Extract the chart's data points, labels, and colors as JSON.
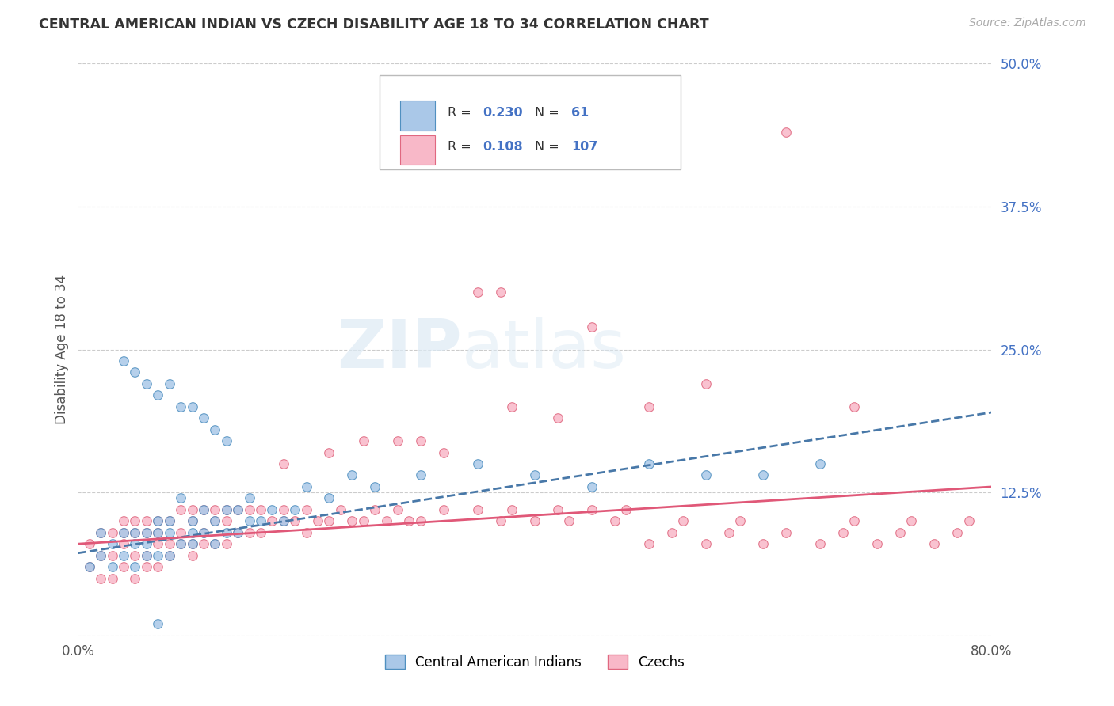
{
  "title": "CENTRAL AMERICAN INDIAN VS CZECH DISABILITY AGE 18 TO 34 CORRELATION CHART",
  "source": "Source: ZipAtlas.com",
  "ylabel": "Disability Age 18 to 34",
  "xlim": [
    0.0,
    0.8
  ],
  "ylim": [
    0.0,
    0.5
  ],
  "xtick_vals": [
    0.0,
    0.1,
    0.2,
    0.3,
    0.4,
    0.5,
    0.6,
    0.7,
    0.8
  ],
  "ytick_vals": [
    0.0,
    0.125,
    0.25,
    0.375,
    0.5
  ],
  "ytick_labels": [
    "",
    "12.5%",
    "25.0%",
    "37.5%",
    "50.0%"
  ],
  "blue_R": 0.23,
  "blue_N": 61,
  "pink_R": 0.108,
  "pink_N": 107,
  "blue_line_color": "#4878a8",
  "pink_line_color": "#e05878",
  "blue_fill_color": "#aac8e8",
  "pink_fill_color": "#f8b8c8",
  "blue_edge_color": "#5090c0",
  "pink_edge_color": "#e06880",
  "legend_label_blue": "Central American Indians",
  "legend_label_pink": "Czechs",
  "blue_trend_start": 0.072,
  "blue_trend_end": 0.195,
  "pink_trend_start": 0.08,
  "pink_trend_end": 0.13,
  "blue_x": [
    0.01,
    0.02,
    0.02,
    0.03,
    0.03,
    0.04,
    0.04,
    0.05,
    0.05,
    0.05,
    0.06,
    0.06,
    0.06,
    0.07,
    0.07,
    0.07,
    0.08,
    0.08,
    0.08,
    0.09,
    0.09,
    0.1,
    0.1,
    0.1,
    0.11,
    0.11,
    0.12,
    0.12,
    0.13,
    0.13,
    0.14,
    0.14,
    0.15,
    0.15,
    0.16,
    0.17,
    0.18,
    0.19,
    0.2,
    0.22,
    0.24,
    0.26,
    0.3,
    0.35,
    0.4,
    0.45,
    0.5,
    0.55,
    0.6,
    0.65,
    0.04,
    0.05,
    0.06,
    0.07,
    0.08,
    0.09,
    0.1,
    0.11,
    0.12,
    0.13,
    0.07
  ],
  "blue_y": [
    0.06,
    0.07,
    0.09,
    0.06,
    0.08,
    0.07,
    0.09,
    0.06,
    0.08,
    0.09,
    0.07,
    0.09,
    0.08,
    0.07,
    0.09,
    0.1,
    0.07,
    0.09,
    0.1,
    0.08,
    0.12,
    0.08,
    0.1,
    0.09,
    0.09,
    0.11,
    0.08,
    0.1,
    0.09,
    0.11,
    0.09,
    0.11,
    0.1,
    0.12,
    0.1,
    0.11,
    0.1,
    0.11,
    0.13,
    0.12,
    0.14,
    0.13,
    0.14,
    0.15,
    0.14,
    0.13,
    0.15,
    0.14,
    0.14,
    0.15,
    0.24,
    0.23,
    0.22,
    0.21,
    0.22,
    0.2,
    0.2,
    0.19,
    0.18,
    0.17,
    0.01
  ],
  "pink_x": [
    0.01,
    0.01,
    0.02,
    0.02,
    0.02,
    0.03,
    0.03,
    0.03,
    0.04,
    0.04,
    0.04,
    0.04,
    0.05,
    0.05,
    0.05,
    0.05,
    0.06,
    0.06,
    0.06,
    0.06,
    0.07,
    0.07,
    0.07,
    0.07,
    0.08,
    0.08,
    0.08,
    0.09,
    0.09,
    0.09,
    0.1,
    0.1,
    0.1,
    0.1,
    0.11,
    0.11,
    0.11,
    0.12,
    0.12,
    0.12,
    0.13,
    0.13,
    0.13,
    0.14,
    0.14,
    0.15,
    0.15,
    0.16,
    0.16,
    0.17,
    0.18,
    0.18,
    0.19,
    0.2,
    0.2,
    0.21,
    0.22,
    0.23,
    0.24,
    0.25,
    0.26,
    0.27,
    0.28,
    0.29,
    0.3,
    0.32,
    0.35,
    0.37,
    0.38,
    0.4,
    0.42,
    0.43,
    0.45,
    0.47,
    0.48,
    0.5,
    0.52,
    0.53,
    0.55,
    0.57,
    0.58,
    0.6,
    0.62,
    0.65,
    0.67,
    0.68,
    0.7,
    0.72,
    0.73,
    0.75,
    0.77,
    0.78,
    0.3,
    0.35,
    0.28,
    0.22,
    0.18,
    0.42,
    0.5,
    0.55,
    0.37,
    0.62,
    0.68,
    0.45,
    0.38,
    0.32,
    0.25
  ],
  "pink_y": [
    0.06,
    0.08,
    0.05,
    0.07,
    0.09,
    0.05,
    0.07,
    0.09,
    0.06,
    0.08,
    0.09,
    0.1,
    0.05,
    0.07,
    0.09,
    0.1,
    0.06,
    0.07,
    0.09,
    0.1,
    0.06,
    0.08,
    0.09,
    0.1,
    0.07,
    0.08,
    0.1,
    0.08,
    0.09,
    0.11,
    0.07,
    0.08,
    0.1,
    0.11,
    0.08,
    0.09,
    0.11,
    0.08,
    0.1,
    0.11,
    0.08,
    0.1,
    0.11,
    0.09,
    0.11,
    0.09,
    0.11,
    0.09,
    0.11,
    0.1,
    0.1,
    0.11,
    0.1,
    0.09,
    0.11,
    0.1,
    0.1,
    0.11,
    0.1,
    0.1,
    0.11,
    0.1,
    0.11,
    0.1,
    0.1,
    0.11,
    0.11,
    0.1,
    0.11,
    0.1,
    0.11,
    0.1,
    0.11,
    0.1,
    0.11,
    0.08,
    0.09,
    0.1,
    0.08,
    0.09,
    0.1,
    0.08,
    0.09,
    0.08,
    0.09,
    0.1,
    0.08,
    0.09,
    0.1,
    0.08,
    0.09,
    0.1,
    0.17,
    0.3,
    0.17,
    0.16,
    0.15,
    0.19,
    0.2,
    0.22,
    0.3,
    0.44,
    0.2,
    0.27,
    0.2,
    0.16,
    0.17
  ]
}
